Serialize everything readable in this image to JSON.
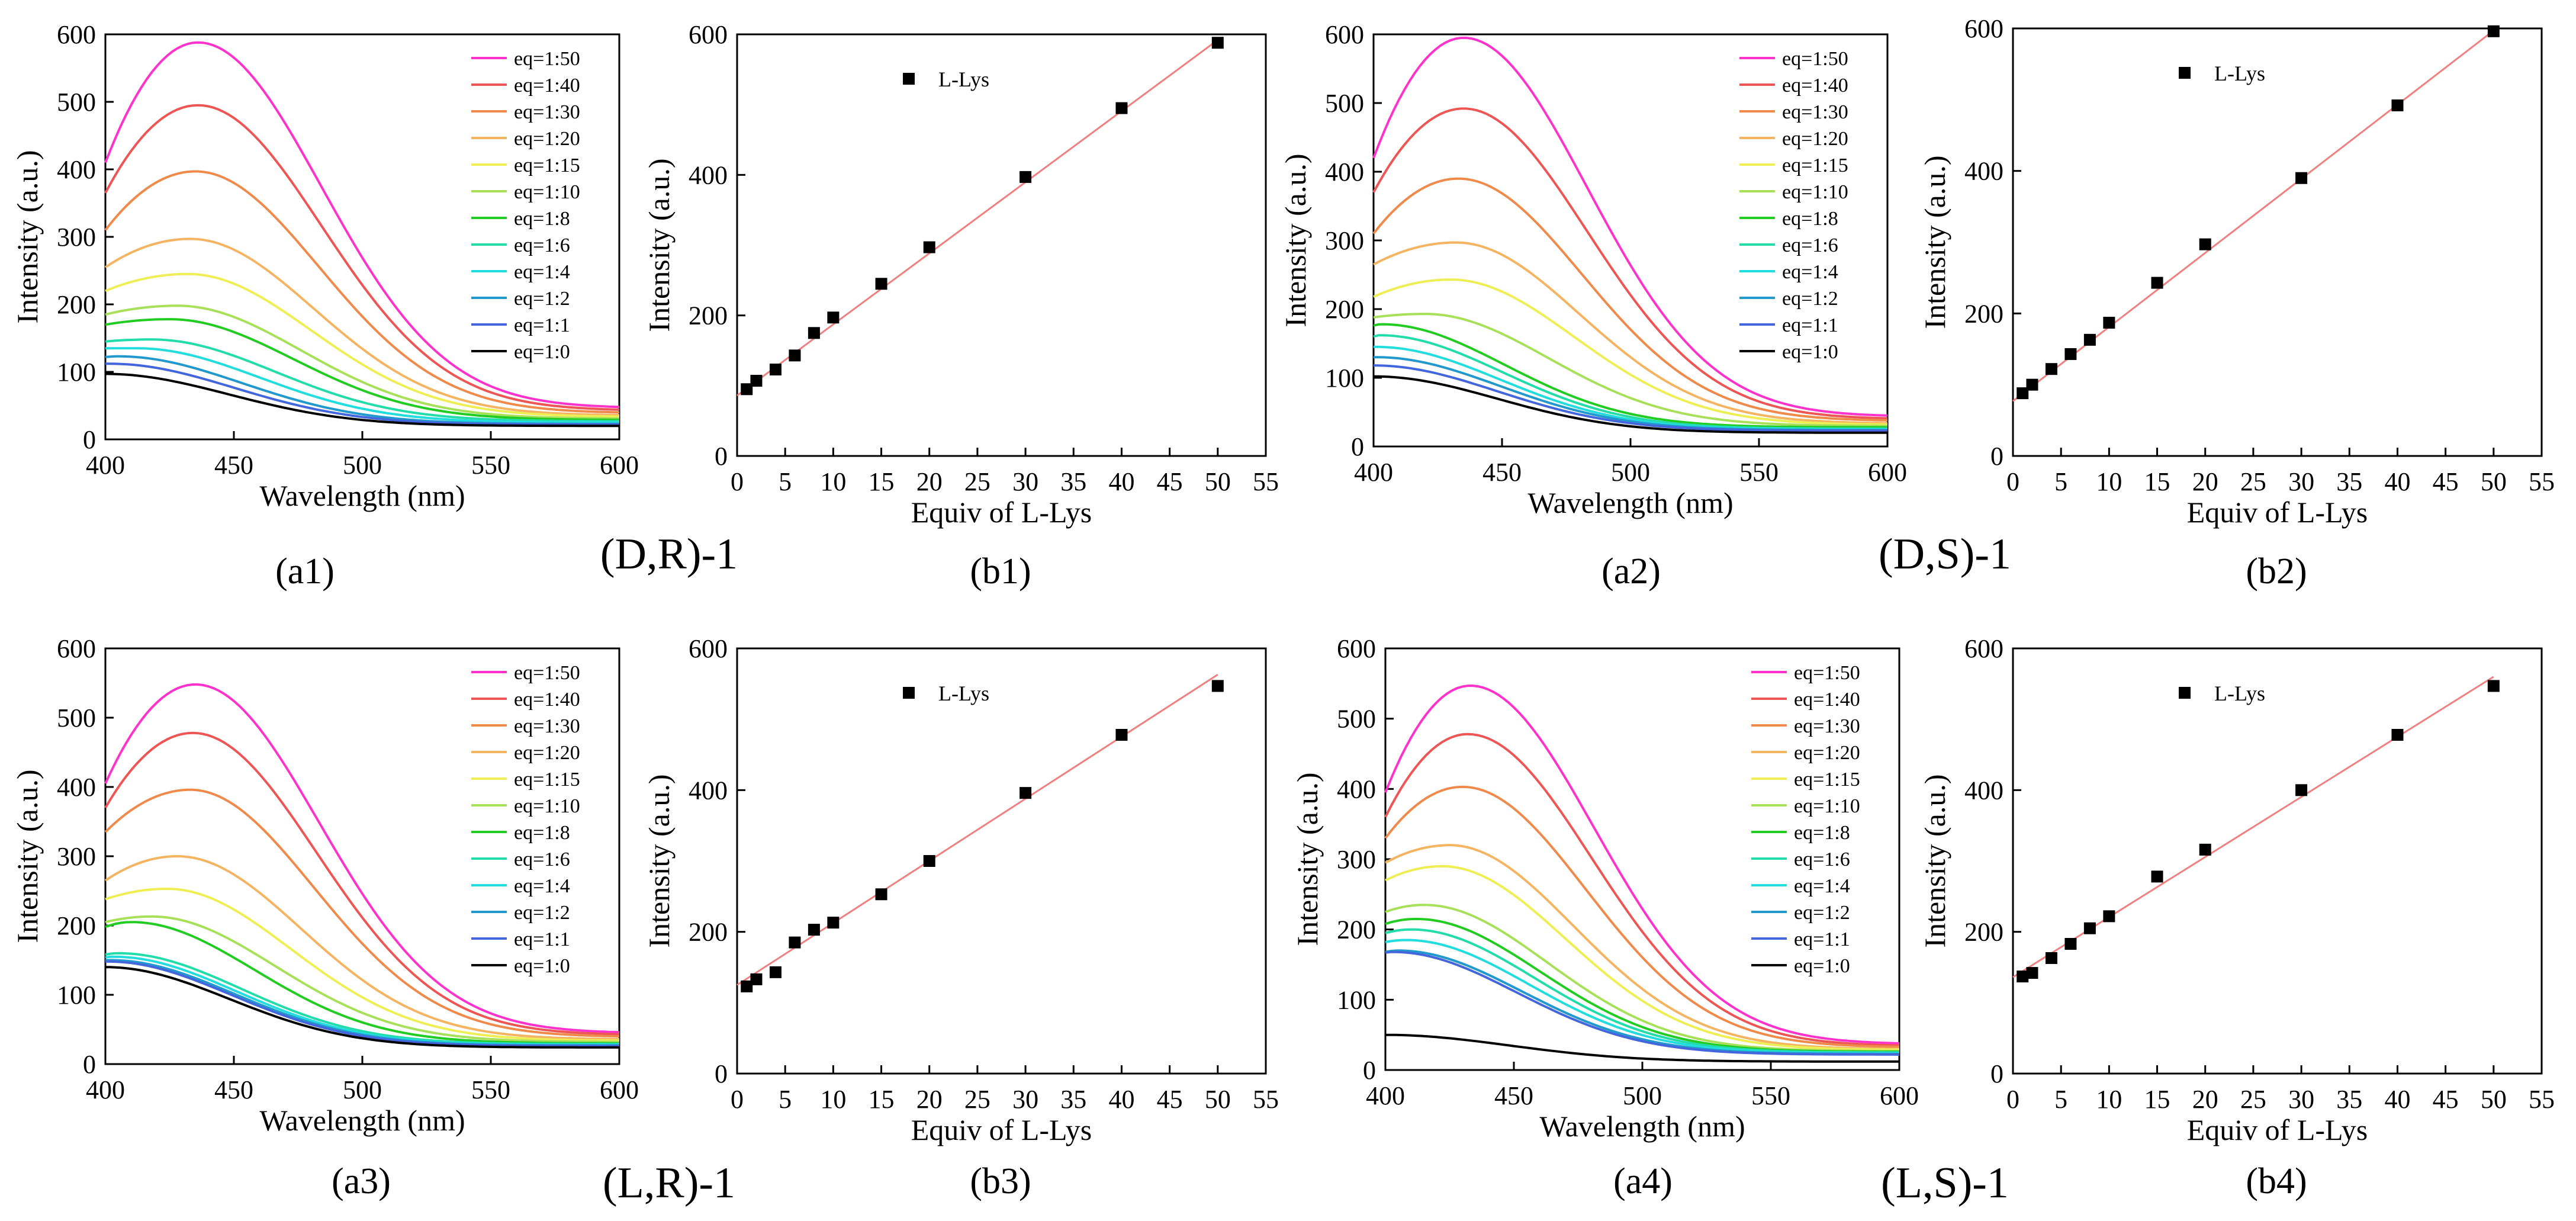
{
  "figure": {
    "group_labels": [
      "(D,R)-1",
      "(D,S)-1",
      "(L,R)-1",
      "(L,S)-1"
    ],
    "series_colors": {
      "eq=1:50": "#ff33cc",
      "eq=1:40": "#ee5555",
      "eq=1:30": "#f08a4b",
      "eq=1:20": "#f5b461",
      "eq=1:15": "#eeee55",
      "eq=1:10": "#a8e05a",
      "eq=1:8": "#22cc22",
      "eq=1:6": "#22ddaa",
      "eq=1:4": "#22dddd",
      "eq=1:2": "#2299cc",
      "eq=1:1": "#4466dd",
      "eq=1:0": "#000000"
    },
    "fit_line_color": "#f08080",
    "marker_color": "#000000"
  },
  "chart_data": [
    {
      "id": "a1",
      "panel_label": "(a1)",
      "type": "line",
      "xlabel": "Wavelength (nm)",
      "ylabel": "Intensity (a.u.)",
      "xlim": [
        400,
        600
      ],
      "ylim": [
        0,
        600
      ],
      "xticks": [
        400,
        450,
        500,
        550,
        600
      ],
      "yticks": [
        0,
        100,
        200,
        300,
        400,
        500,
        600
      ],
      "legend": "top-right",
      "grid": false,
      "series": [
        {
          "name": "eq=1:50",
          "peak_x": 436,
          "peak_y": 588,
          "start_y": 410,
          "end_y": 48
        },
        {
          "name": "eq=1:40",
          "peak_x": 436,
          "peak_y": 495,
          "start_y": 365,
          "end_y": 44
        },
        {
          "name": "eq=1:30",
          "peak_x": 435,
          "peak_y": 397,
          "start_y": 310,
          "end_y": 40
        },
        {
          "name": "eq=1:20",
          "peak_x": 433,
          "peak_y": 297,
          "start_y": 255,
          "end_y": 36
        },
        {
          "name": "eq=1:15",
          "peak_x": 432,
          "peak_y": 245,
          "start_y": 220,
          "end_y": 34
        },
        {
          "name": "eq=1:10",
          "peak_x": 428,
          "peak_y": 198,
          "start_y": 185,
          "end_y": 31
        },
        {
          "name": "eq=1:8",
          "peak_x": 425,
          "peak_y": 178,
          "start_y": 170,
          "end_y": 29
        },
        {
          "name": "eq=1:6",
          "peak_x": 418,
          "peak_y": 148,
          "start_y": 145,
          "end_y": 27
        },
        {
          "name": "eq=1:4",
          "peak_x": 412,
          "peak_y": 135,
          "start_y": 135,
          "end_y": 25
        },
        {
          "name": "eq=1:2",
          "peak_x": 405,
          "peak_y": 123,
          "start_y": 122,
          "end_y": 23
        },
        {
          "name": "eq=1:1",
          "peak_x": 402,
          "peak_y": 112,
          "start_y": 112,
          "end_y": 22
        },
        {
          "name": "eq=1:0",
          "peak_x": 400,
          "peak_y": 97,
          "start_y": 97,
          "end_y": 20
        }
      ]
    },
    {
      "id": "b1",
      "panel_label": "(b1)",
      "type": "scatter",
      "xlabel": "Equiv of L-Lys",
      "ylabel": "Intensity (a.u.)",
      "xlim": [
        0,
        55
      ],
      "ylim": [
        0,
        600
      ],
      "xticks": [
        0,
        5,
        10,
        15,
        20,
        25,
        30,
        35,
        40,
        45,
        50,
        55
      ],
      "yticks": [
        0,
        200,
        400,
        600
      ],
      "legend": "top-left",
      "grid": false,
      "series": [
        {
          "name": "L-Lys",
          "x": [
            1,
            2,
            4,
            6,
            8,
            10,
            15,
            20,
            30,
            40,
            50
          ],
          "y": [
            95,
            107,
            123,
            143,
            175,
            197,
            245,
            297,
            397,
            495,
            588
          ]
        }
      ],
      "fit": {
        "x": [
          0,
          50
        ],
        "y": [
          86,
          592
        ]
      }
    },
    {
      "id": "a2",
      "panel_label": "(a2)",
      "type": "line",
      "xlabel": "Wavelength (nm)",
      "ylabel": "Intensity (a.u.)",
      "xlim": [
        400,
        600
      ],
      "ylim": [
        0,
        600
      ],
      "xticks": [
        400,
        450,
        500,
        550,
        600
      ],
      "yticks": [
        0,
        100,
        200,
        300,
        400,
        500,
        600
      ],
      "legend": "top-right",
      "grid": false,
      "series": [
        {
          "name": "eq=1:50",
          "peak_x": 435,
          "peak_y": 595,
          "start_y": 420,
          "end_y": 45
        },
        {
          "name": "eq=1:40",
          "peak_x": 435,
          "peak_y": 492,
          "start_y": 370,
          "end_y": 41
        },
        {
          "name": "eq=1:30",
          "peak_x": 433,
          "peak_y": 390,
          "start_y": 310,
          "end_y": 38
        },
        {
          "name": "eq=1:20",
          "peak_x": 432,
          "peak_y": 297,
          "start_y": 265,
          "end_y": 34
        },
        {
          "name": "eq=1:15",
          "peak_x": 430,
          "peak_y": 243,
          "start_y": 218,
          "end_y": 32
        },
        {
          "name": "eq=1:10",
          "peak_x": 420,
          "peak_y": 193,
          "start_y": 188,
          "end_y": 30
        },
        {
          "name": "eq=1:8",
          "peak_x": 403,
          "peak_y": 178,
          "start_y": 176,
          "end_y": 28
        },
        {
          "name": "eq=1:6",
          "peak_x": 402,
          "peak_y": 162,
          "start_y": 160,
          "end_y": 26
        },
        {
          "name": "eq=1:4",
          "peak_x": 401,
          "peak_y": 145,
          "start_y": 145,
          "end_y": 25
        },
        {
          "name": "eq=1:2",
          "peak_x": 401,
          "peak_y": 130,
          "start_y": 130,
          "end_y": 24
        },
        {
          "name": "eq=1:1",
          "peak_x": 400,
          "peak_y": 118,
          "start_y": 118,
          "end_y": 23
        },
        {
          "name": "eq=1:0",
          "peak_x": 400,
          "peak_y": 102,
          "start_y": 102,
          "end_y": 20
        }
      ]
    },
    {
      "id": "b2",
      "panel_label": "(b2)",
      "type": "scatter",
      "xlabel": "Equiv of L-Lys",
      "ylabel": "Intensity (a.u.)",
      "xlim": [
        0,
        55
      ],
      "ylim": [
        0,
        600
      ],
      "xticks": [
        0,
        5,
        10,
        15,
        20,
        25,
        30,
        35,
        40,
        45,
        50,
        55
      ],
      "yticks": [
        0,
        200,
        400,
        600
      ],
      "legend": "top-left",
      "grid": false,
      "series": [
        {
          "name": "L-Lys",
          "x": [
            1,
            2,
            4,
            6,
            8,
            10,
            15,
            20,
            30,
            40,
            50
          ],
          "y": [
            88,
            100,
            122,
            143,
            163,
            187,
            243,
            297,
            390,
            492,
            596
          ]
        }
      ],
      "fit": {
        "x": [
          0,
          50
        ],
        "y": [
          77,
          597
        ]
      }
    },
    {
      "id": "a3",
      "panel_label": "(a3)",
      "type": "line",
      "xlabel": "Wavelength (nm)",
      "ylabel": "Intensity (a.u.)",
      "xlim": [
        400,
        600
      ],
      "ylim": [
        0,
        600
      ],
      "xticks": [
        400,
        450,
        500,
        550,
        600
      ],
      "yticks": [
        0,
        100,
        200,
        300,
        400,
        500,
        600
      ],
      "legend": "top-right",
      "grid": false,
      "series": [
        {
          "name": "eq=1:50",
          "peak_x": 435,
          "peak_y": 548,
          "start_y": 405,
          "end_y": 46
        },
        {
          "name": "eq=1:40",
          "peak_x": 434,
          "peak_y": 478,
          "start_y": 370,
          "end_y": 43
        },
        {
          "name": "eq=1:30",
          "peak_x": 433,
          "peak_y": 396,
          "start_y": 335,
          "end_y": 40
        },
        {
          "name": "eq=1:20",
          "peak_x": 428,
          "peak_y": 300,
          "start_y": 265,
          "end_y": 36
        },
        {
          "name": "eq=1:15",
          "peak_x": 424,
          "peak_y": 253,
          "start_y": 238,
          "end_y": 34
        },
        {
          "name": "eq=1:10",
          "peak_x": 418,
          "peak_y": 213,
          "start_y": 205,
          "end_y": 32
        },
        {
          "name": "eq=1:8",
          "peak_x": 410,
          "peak_y": 205,
          "start_y": 198,
          "end_y": 30
        },
        {
          "name": "eq=1:6",
          "peak_x": 405,
          "peak_y": 160,
          "start_y": 158,
          "end_y": 29
        },
        {
          "name": "eq=1:4",
          "peak_x": 403,
          "peak_y": 155,
          "start_y": 154,
          "end_y": 28
        },
        {
          "name": "eq=1:2",
          "peak_x": 402,
          "peak_y": 150,
          "start_y": 150,
          "end_y": 27
        },
        {
          "name": "eq=1:1",
          "peak_x": 401,
          "peak_y": 148,
          "start_y": 148,
          "end_y": 26
        },
        {
          "name": "eq=1:0",
          "peak_x": 400,
          "peak_y": 140,
          "start_y": 140,
          "end_y": 24
        }
      ]
    },
    {
      "id": "b3",
      "panel_label": "(b3)",
      "type": "scatter",
      "xlabel": "Equiv of L-Lys",
      "ylabel": "Intensity (a.u.)",
      "xlim": [
        0,
        55
      ],
      "ylim": [
        0,
        600
      ],
      "xticks": [
        0,
        5,
        10,
        15,
        20,
        25,
        30,
        35,
        40,
        45,
        50,
        55
      ],
      "yticks": [
        0,
        200,
        400,
        600
      ],
      "legend": "top-left",
      "grid": false,
      "series": [
        {
          "name": "L-Lys",
          "x": [
            1,
            2,
            4,
            6,
            8,
            10,
            15,
            20,
            30,
            40,
            50
          ],
          "y": [
            123,
            133,
            143,
            185,
            203,
            213,
            253,
            300,
            396,
            478,
            547
          ]
        }
      ],
      "fit": {
        "x": [
          0,
          50
        ],
        "y": [
          125,
          563
        ]
      }
    },
    {
      "id": "a4",
      "panel_label": "(a4)",
      "type": "line",
      "xlabel": "Wavelength (nm)",
      "ylabel": "Intensity (a.u.)",
      "xlim": [
        400,
        600
      ],
      "ylim": [
        0,
        600
      ],
      "xticks": [
        400,
        450,
        500,
        550,
        600
      ],
      "yticks": [
        0,
        100,
        200,
        300,
        400,
        500,
        600
      ],
      "legend": "top-right",
      "grid": false,
      "series": [
        {
          "name": "eq=1:50",
          "peak_x": 433,
          "peak_y": 547,
          "start_y": 395,
          "end_y": 38
        },
        {
          "name": "eq=1:40",
          "peak_x": 432,
          "peak_y": 478,
          "start_y": 360,
          "end_y": 35
        },
        {
          "name": "eq=1:30",
          "peak_x": 430,
          "peak_y": 403,
          "start_y": 330,
          "end_y": 33
        },
        {
          "name": "eq=1:20",
          "peak_x": 425,
          "peak_y": 320,
          "start_y": 295,
          "end_y": 30
        },
        {
          "name": "eq=1:15",
          "peak_x": 422,
          "peak_y": 290,
          "start_y": 270,
          "end_y": 29
        },
        {
          "name": "eq=1:10",
          "peak_x": 415,
          "peak_y": 235,
          "start_y": 225,
          "end_y": 27
        },
        {
          "name": "eq=1:8",
          "peak_x": 412,
          "peak_y": 215,
          "start_y": 208,
          "end_y": 26
        },
        {
          "name": "eq=1:6",
          "peak_x": 410,
          "peak_y": 200,
          "start_y": 195,
          "end_y": 25
        },
        {
          "name": "eq=1:4",
          "peak_x": 408,
          "peak_y": 185,
          "start_y": 182,
          "end_y": 24
        },
        {
          "name": "eq=1:2",
          "peak_x": 405,
          "peak_y": 170,
          "start_y": 168,
          "end_y": 23
        },
        {
          "name": "eq=1:1",
          "peak_x": 403,
          "peak_y": 168,
          "start_y": 167,
          "end_y": 22
        },
        {
          "name": "eq=1:0",
          "peak_x": 400,
          "peak_y": 50,
          "start_y": 50,
          "end_y": 12
        }
      ]
    },
    {
      "id": "b4",
      "panel_label": "(b4)",
      "type": "scatter",
      "xlabel": "Equiv of L-Lys",
      "ylabel": "Intensity (a.u.)",
      "xlim": [
        0,
        55
      ],
      "ylim": [
        0,
        600
      ],
      "xticks": [
        0,
        5,
        10,
        15,
        20,
        25,
        30,
        35,
        40,
        45,
        50,
        55
      ],
      "yticks": [
        0,
        200,
        400,
        600
      ],
      "legend": "top-left",
      "grid": false,
      "series": [
        {
          "name": "L-Lys",
          "x": [
            1,
            2,
            4,
            6,
            8,
            10,
            15,
            20,
            30,
            40,
            50
          ],
          "y": [
            137,
            142,
            163,
            183,
            205,
            222,
            278,
            316,
            400,
            478,
            547
          ]
        }
      ],
      "fit": {
        "x": [
          0,
          50
        ],
        "y": [
          136,
          560
        ]
      }
    }
  ]
}
